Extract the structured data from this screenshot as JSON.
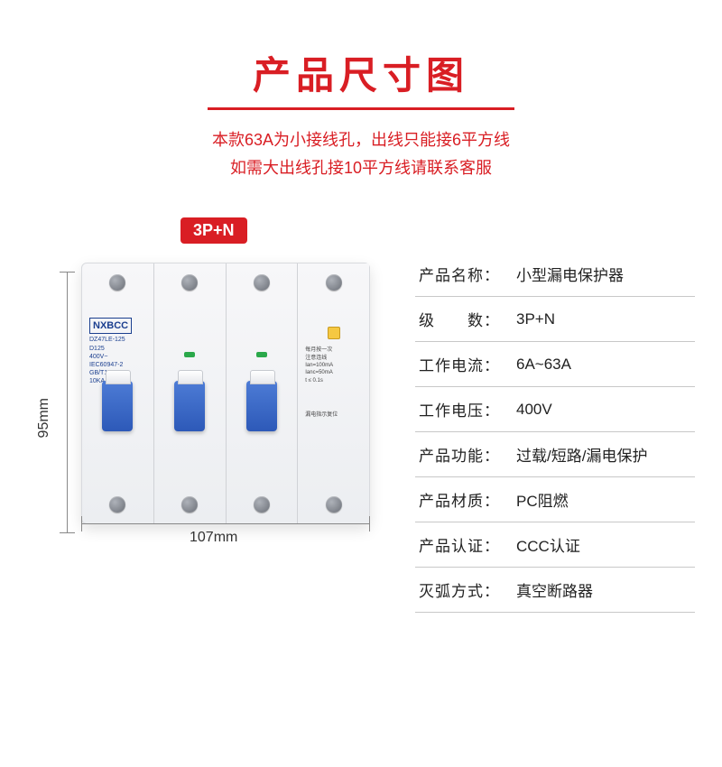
{
  "title": "产品尺寸图",
  "subtitle_line1": "本款63A为小接线孔，出线只能接6平方线",
  "subtitle_line2": "如需大出线孔接10平方线请联系客服",
  "badge": "3P+N",
  "dimensions": {
    "height": "95mm",
    "width": "107mm"
  },
  "device_label": {
    "brand": "NXBCC",
    "model": "DZ47LE-125",
    "rating": "D125",
    "voltage": "400V~",
    "std1": "IEC60947-2",
    "std2": "GB/T14048.2",
    "ka": "10KA 50Hz",
    "on": "| ON",
    "off": "O OFF"
  },
  "n_module": {
    "line1": "每月按一次",
    "line2": "注意连线",
    "line3": "Ian=100mA",
    "line4": "Ianc=50mA",
    "line5": "t ≤ 0.1s",
    "line6": "漏电指示复位"
  },
  "specs": [
    {
      "key": "产品名称：",
      "value": "小型漏电保护器"
    },
    {
      "key": "级　　数：",
      "value": "3P+N"
    },
    {
      "key": "工作电流：",
      "value": "6A~63A"
    },
    {
      "key": "工作电压：",
      "value": "400V"
    },
    {
      "key": "产品功能：",
      "value": "过载/短路/漏电保护"
    },
    {
      "key": "产品材质：",
      "value": "PC阻燃"
    },
    {
      "key": "产品认证：",
      "value": "CCC认证"
    },
    {
      "key": "灭弧方式：",
      "value": "真空断路器"
    }
  ],
  "colors": {
    "accent": "#d91e24",
    "blue": "#2d59b8"
  }
}
